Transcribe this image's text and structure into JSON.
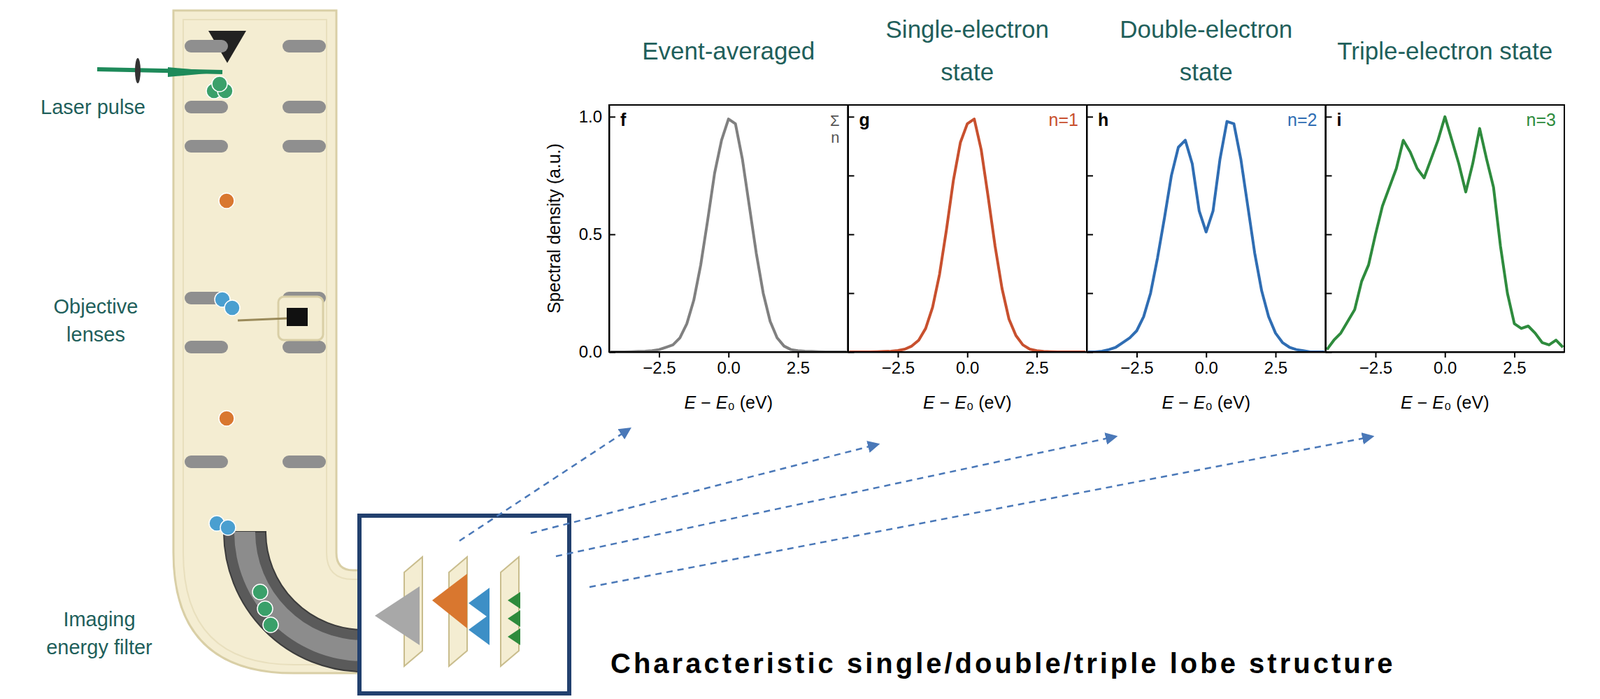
{
  "diagram": {
    "labels": [
      "Laser pulse",
      "Objective lenses",
      "Imaging energy filter"
    ],
    "caption": "Characteristic single/double/triple lobe structure"
  },
  "chart_data": [
    {
      "type": "line",
      "title": "Event-averaged",
      "panel_label": "f",
      "annotation": [
        "Σ",
        "n"
      ],
      "x_label": "E − E₀ (eV)",
      "y_label": "Spectral density (a.u.)",
      "color": "#808080",
      "x": [
        -4.25,
        -4,
        -3.75,
        -3.5,
        -3.25,
        -3,
        -2.75,
        -2.5,
        -2.25,
        -2,
        -1.75,
        -1.5,
        -1.25,
        -1,
        -0.75,
        -0.5,
        -0.25,
        0,
        0.25,
        0.5,
        0.75,
        1,
        1.25,
        1.5,
        1.75,
        2,
        2.25,
        2.5,
        2.75,
        3,
        3.25,
        3.5,
        3.75,
        4,
        4.25
      ],
      "values": [
        0,
        0,
        0,
        0.001,
        0.002,
        0.003,
        0.005,
        0.01,
        0.02,
        0.03,
        0.06,
        0.12,
        0.22,
        0.37,
        0.56,
        0.76,
        0.9,
        0.99,
        0.97,
        0.82,
        0.62,
        0.42,
        0.25,
        0.13,
        0.06,
        0.025,
        0.01,
        0.005,
        0.003,
        0.002,
        0.001,
        0,
        0,
        0,
        0
      ],
      "xlim": [
        -4.3,
        4.3
      ],
      "ylim": [
        0,
        1.05
      ],
      "xticks": [
        {
          "value": -2.5,
          "label": "−2.5"
        },
        {
          "value": 0,
          "label": "0.0"
        },
        {
          "value": 2.5,
          "label": "2.5"
        }
      ],
      "yticks": [
        {
          "value": 0,
          "label": "0.0"
        },
        {
          "value": 0.5,
          "label": "0.5"
        },
        {
          "value": 1,
          "label": "1.0"
        }
      ]
    },
    {
      "type": "line",
      "title": "Single-electron state",
      "panel_label": "g",
      "annotation": [
        "n=1"
      ],
      "x_label": "E − E₀ (eV)",
      "color": "#c8502e",
      "tick_labels": "x",
      "x": [
        -4.25,
        -4,
        -3.75,
        -3.5,
        -3.25,
        -3,
        -2.75,
        -2.5,
        -2.25,
        -2,
        -1.75,
        -1.5,
        -1.25,
        -1,
        -0.75,
        -0.5,
        -0.25,
        0,
        0.25,
        0.5,
        0.75,
        1,
        1.25,
        1.5,
        1.75,
        2,
        2.25,
        2.5,
        2.75,
        3,
        3.25,
        3.5,
        3.75,
        4,
        4.25
      ],
      "values": [
        0,
        0,
        0,
        0,
        0.001,
        0.002,
        0.003,
        0.006,
        0.012,
        0.025,
        0.05,
        0.1,
        0.19,
        0.33,
        0.52,
        0.73,
        0.89,
        0.97,
        0.99,
        0.86,
        0.66,
        0.45,
        0.27,
        0.14,
        0.07,
        0.03,
        0.012,
        0.005,
        0.002,
        0.001,
        0,
        0,
        0,
        0,
        0
      ],
      "xlim": [
        -4.3,
        4.3
      ],
      "ylim": [
        0,
        1.05
      ],
      "xticks": [
        {
          "value": -2.5,
          "label": "−2.5"
        },
        {
          "value": 0,
          "label": "0.0"
        },
        {
          "value": 2.5,
          "label": "2.5"
        }
      ],
      "yticks": [
        0,
        0.25,
        0.5,
        0.75,
        1
      ]
    },
    {
      "type": "line",
      "title": "Double-electron state",
      "panel_label": "h",
      "annotation": [
        "n=2"
      ],
      "x_label": "E − E₀ (eV)",
      "color": "#2f6db3",
      "tick_labels": "x",
      "x": [
        -4.25,
        -4,
        -3.75,
        -3.5,
        -3.25,
        -3,
        -2.75,
        -2.5,
        -2.25,
        -2,
        -1.75,
        -1.5,
        -1.25,
        -1,
        -0.75,
        -0.5,
        -0.25,
        0,
        0.25,
        0.5,
        0.75,
        1,
        1.25,
        1.5,
        1.75,
        2,
        2.25,
        2.5,
        2.75,
        3,
        3.25,
        3.5,
        3.75,
        4,
        4.25
      ],
      "values": [
        0,
        0,
        0.003,
        0.01,
        0.02,
        0.04,
        0.06,
        0.09,
        0.15,
        0.25,
        0.4,
        0.57,
        0.75,
        0.87,
        0.9,
        0.8,
        0.6,
        0.51,
        0.6,
        0.82,
        0.98,
        0.97,
        0.82,
        0.62,
        0.42,
        0.26,
        0.15,
        0.08,
        0.04,
        0.02,
        0.01,
        0.005,
        0,
        0,
        0
      ],
      "xlim": [
        -4.3,
        4.3
      ],
      "ylim": [
        0,
        1.05
      ],
      "xticks": [
        {
          "value": -2.5,
          "label": "−2.5"
        },
        {
          "value": 0,
          "label": "0.0"
        },
        {
          "value": 2.5,
          "label": "2.5"
        }
      ],
      "yticks": [
        0,
        0.25,
        0.5,
        0.75,
        1
      ]
    },
    {
      "type": "line",
      "title": "Triple-electron state",
      "panel_label": "i",
      "annotation": [
        "n=3"
      ],
      "x_label": "E − E₀ (eV)",
      "color": "#2e8b3d",
      "tick_labels": "x",
      "x": [
        -4.25,
        -4,
        -3.75,
        -3.5,
        -3.25,
        -3,
        -2.75,
        -2.5,
        -2.25,
        -2,
        -1.75,
        -1.5,
        -1.25,
        -1,
        -0.75,
        -0.5,
        -0.25,
        0,
        0.25,
        0.5,
        0.75,
        1,
        1.25,
        1.5,
        1.75,
        2,
        2.25,
        2.5,
        2.75,
        3,
        3.25,
        3.5,
        3.75,
        4,
        4.25
      ],
      "values": [
        0.01,
        0.05,
        0.08,
        0.13,
        0.18,
        0.3,
        0.37,
        0.5,
        0.62,
        0.7,
        0.78,
        0.9,
        0.85,
        0.78,
        0.74,
        0.82,
        0.9,
        1.0,
        0.9,
        0.8,
        0.68,
        0.8,
        0.95,
        0.82,
        0.7,
        0.45,
        0.25,
        0.12,
        0.1,
        0.11,
        0.08,
        0.04,
        0.03,
        0.05,
        0.02
      ],
      "xlim": [
        -4.3,
        4.3
      ],
      "ylim": [
        0,
        1.05
      ],
      "xticks": [
        {
          "value": -2.5,
          "label": "−2.5"
        },
        {
          "value": 0,
          "label": "0.0"
        },
        {
          "value": 2.5,
          "label": "2.5"
        }
      ],
      "yticks": [
        0,
        0.25,
        0.5,
        0.75,
        1
      ]
    }
  ]
}
